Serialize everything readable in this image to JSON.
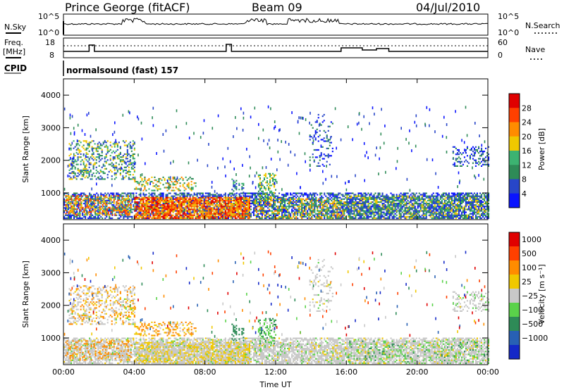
{
  "header": {
    "station": "Prince George (fitACF)",
    "beam": "Beam 09",
    "date": "04/Jul/2010"
  },
  "panels": {
    "nsky_label": "N.Sky",
    "nsky_ticks": [
      "10^5",
      "10^0"
    ],
    "nsearch_label": "N.Search",
    "nsearch_ticks": [
      "10^5",
      "10^0"
    ],
    "freq_label": "Freq.",
    "freq_unit": "[MHz]",
    "freq_ticks": [
      "18",
      "8"
    ],
    "nave_label": "Nave",
    "nave_ticks": [
      "60",
      "0"
    ],
    "cpid_label": "CPID",
    "cpid_value": "normalsound (fast) 157"
  },
  "chart_data": [
    {
      "type": "heatmap",
      "name": "power",
      "ylabel": "Slant Range [km]",
      "xlabel": "",
      "x_ticks": [
        "00:00",
        "04:00",
        "08:00",
        "12:00",
        "16:00",
        "20:00",
        "00:00"
      ],
      "y_ticks": [
        1000,
        2000,
        3000,
        4000
      ],
      "ylim": [
        180,
        4500
      ],
      "xlim_hours": [
        0,
        24
      ],
      "colorbar": {
        "label": "Power [dB]",
        "ticks": [
          "4",
          "8",
          "12",
          "16",
          "20",
          "24",
          "28"
        ],
        "colors": [
          "#0a14ff",
          "#2846c8",
          "#2e8b57",
          "#3cb371",
          "#f0c800",
          "#ff8c00",
          "#ff4000",
          "#e00000"
        ]
      }
    },
    {
      "type": "heatmap",
      "name": "velocity",
      "ylabel": "Slant Range [km]",
      "xlabel": "Time UT",
      "x_ticks": [
        "00:00",
        "04:00",
        "08:00",
        "12:00",
        "16:00",
        "20:00",
        "00:00"
      ],
      "y_ticks": [
        1000,
        2000,
        3000,
        4000
      ],
      "ylim": [
        180,
        4500
      ],
      "xlim_hours": [
        0,
        24
      ],
      "colorbar": {
        "label": "Velocity [m s⁻¹]",
        "ticks": [
          "1000",
          "500",
          "100",
          "25",
          "−25",
          "−100",
          "−500",
          "−1000"
        ],
        "colors": [
          "#1428c8",
          "#2860b4",
          "#2e8b57",
          "#5ad24a",
          "#c8c8c8",
          "#f0c800",
          "#ff8c00",
          "#ff4000",
          "#e00000"
        ]
      }
    }
  ]
}
